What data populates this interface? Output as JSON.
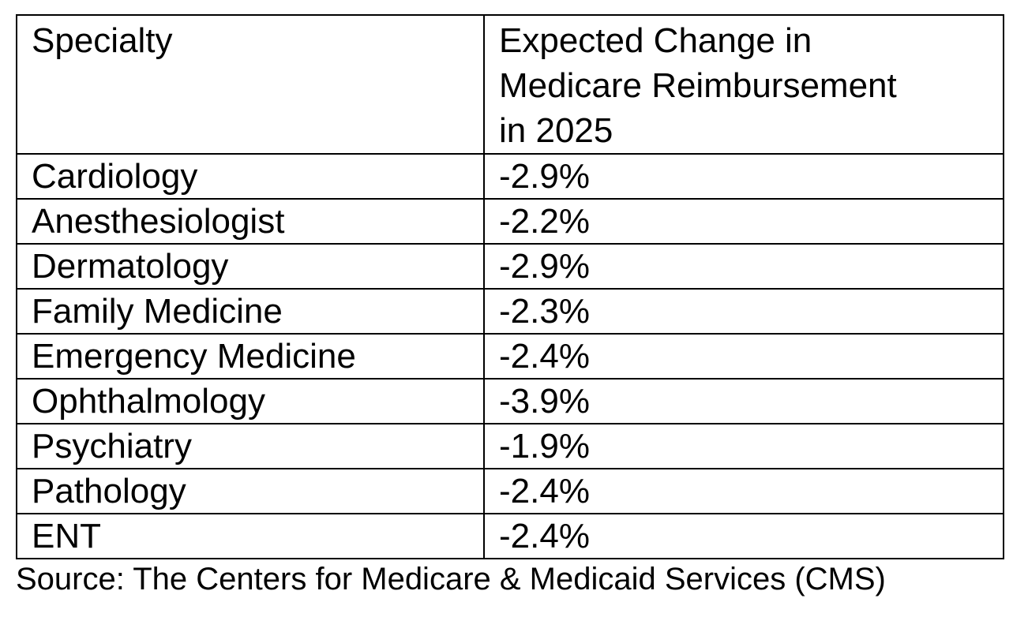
{
  "chart_data": {
    "type": "table",
    "columns": [
      "Specialty",
      "Expected Change in Medicare Reimbursement in 2025"
    ],
    "rows": [
      [
        "Cardiology",
        "-2.9%"
      ],
      [
        "Anesthesiologist",
        "-2.2%"
      ],
      [
        "Dermatology",
        "-2.9%"
      ],
      [
        "Family Medicine",
        "-2.3%"
      ],
      [
        "Emergency Medicine",
        "-2.4%"
      ],
      [
        "Ophthalmology",
        "-3.9%"
      ],
      [
        "Psychiatry",
        "-1.9%"
      ],
      [
        "Pathology",
        "-2.4%"
      ],
      [
        "ENT",
        "-2.4%"
      ]
    ],
    "source": "Source: The Centers for Medicare & Medicaid Services (CMS)",
    "layout_hints": {
      "grid": "all-borders",
      "header_position": "top-row",
      "value_unit": "percent"
    }
  },
  "display": {
    "header_col1": "Specialty",
    "header_col2": "Expected Change in\nMedicare Reimbursement\nin 2025",
    "source_line": "Source: The Centers for Medicare & Medicaid Services (CMS)"
  },
  "colors": {
    "text": "#000000",
    "border": "#000000",
    "background": "#ffffff"
  }
}
